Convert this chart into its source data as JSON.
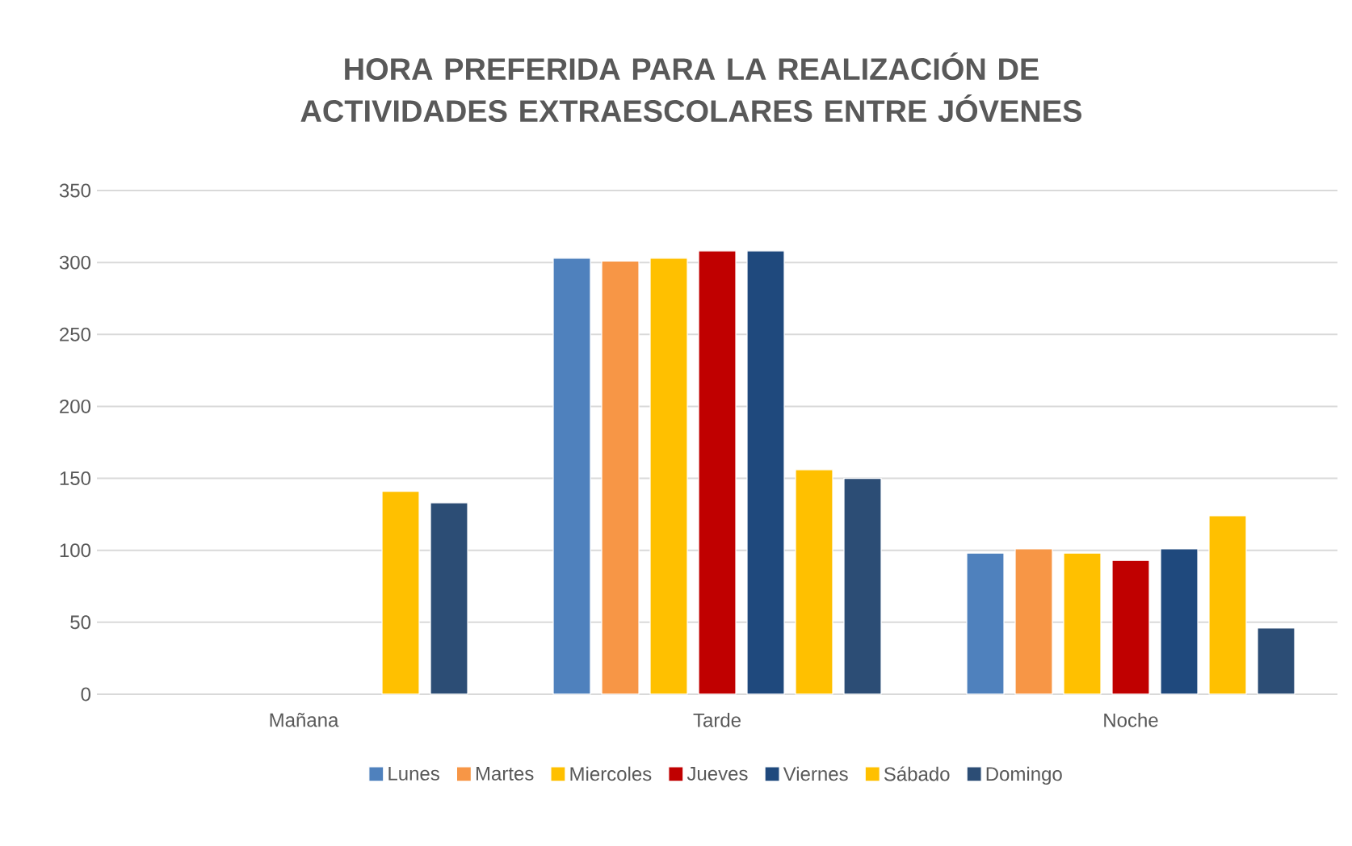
{
  "chart_data": {
    "type": "bar",
    "title": "HORA PREFERIDA PARA LA REALIZACIÓN DE ACTIVIDADES EXTRAESCOLARES ENTRE JÓVENES",
    "categories": [
      "Mañana",
      "Tarde",
      "Noche"
    ],
    "series": [
      {
        "name": "Lunes",
        "color": "#4f81bd",
        "values": [
          null,
          303,
          98
        ]
      },
      {
        "name": "Martes",
        "color": "#f79646",
        "values": [
          null,
          301,
          101
        ]
      },
      {
        "name": "Miercoles",
        "color": "#ffc000",
        "values": [
          null,
          303,
          98
        ]
      },
      {
        "name": "Jueves",
        "color": "#c00000",
        "values": [
          null,
          308,
          93
        ]
      },
      {
        "name": "Viernes",
        "color": "#1f497d",
        "values": [
          null,
          308,
          101
        ]
      },
      {
        "name": "Sábado",
        "color": "#ffc000",
        "values": [
          141,
          156,
          124
        ]
      },
      {
        "name": "Domingo",
        "color": "#2c4d75",
        "values": [
          133,
          150,
          46
        ]
      }
    ],
    "ylim": [
      0,
      350
    ],
    "yticks": [
      0,
      50,
      100,
      150,
      200,
      250,
      300,
      350
    ],
    "grid": "y",
    "legend": "bottom"
  }
}
